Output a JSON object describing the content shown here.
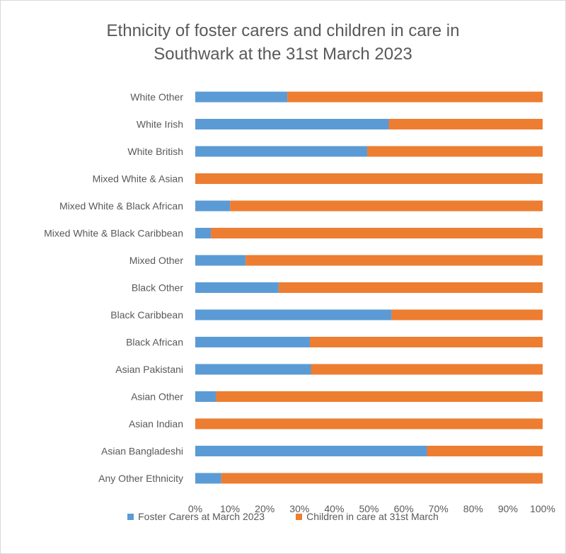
{
  "chart_data": {
    "type": "bar",
    "orientation": "horizontal",
    "stacked": "percent",
    "title": "Ethnicity of foster carers and children in care in Southwark at the 31st March 2023",
    "title_lines": [
      "Ethnicity of foster carers and children in care in",
      "Southwark at the 31st March 2023"
    ],
    "categories": [
      "White Other",
      "White Irish",
      "White British",
      "Mixed White & Asian",
      "Mixed White & Black African",
      "Mixed White & Black Caribbean",
      "Mixed Other",
      "Black Other",
      "Black Caribbean",
      "Black African",
      "Asian Pakistani",
      "Asian Other",
      "Asian Indian",
      "Asian Bangladeshi",
      "Any Other Ethnicity"
    ],
    "series": [
      {
        "name": "Foster Carers at March 2023",
        "color": "#5B9BD5",
        "values": [
          26.5,
          55.7,
          49.5,
          0,
          10,
          4.5,
          14.5,
          24,
          56.5,
          33,
          33.3,
          6,
          0,
          66.7,
          7.5
        ]
      },
      {
        "name": "Children in care at 31st March",
        "color": "#ED7D31",
        "values": [
          73.5,
          44.3,
          50.5,
          100,
          90,
          95.5,
          85.5,
          76,
          43.5,
          67,
          66.7,
          94,
          100,
          33.3,
          92.5
        ]
      }
    ],
    "x_ticks": [
      "0%",
      "10%",
      "20%",
      "30%",
      "40%",
      "50%",
      "60%",
      "70%",
      "80%",
      "90%",
      "100%"
    ],
    "xlim": [
      0,
      100
    ],
    "grid": false,
    "legend_position": "bottom"
  }
}
